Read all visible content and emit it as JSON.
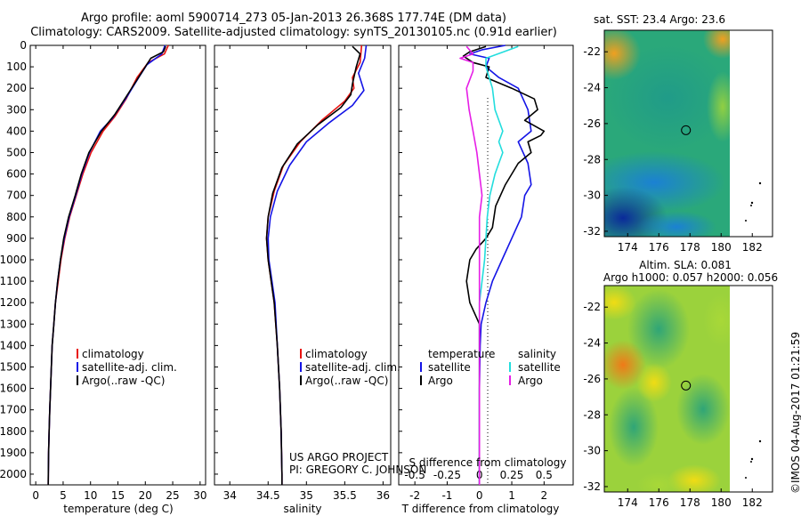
{
  "header": {
    "title_line1": "Argo profile: aoml 5900714_273 05-Jan-2013 26.368S 177.74E (DM data)",
    "title_line2": "Climatology: CARS2009. Satellite-adjusted climatology: synTS_20130105.nc (0.91d earlier)"
  },
  "project": {
    "line1": "US ARGO PROJECT",
    "line2": "PI: GREGORY C. JOHNSON"
  },
  "stamp": "©IMOS 04-Aug-2017 01:21:59",
  "colors": {
    "climatology": "#e8120f",
    "satellite": "#1414e6",
    "argo": "#000000",
    "sal_satellite": "#22dddd",
    "sal_argo": "#e61ee6"
  },
  "chart_data": [
    {
      "type": "line",
      "id": "temperature",
      "xlabel": "temperature (deg C)",
      "ylabel": "",
      "xlim": [
        -1,
        31
      ],
      "ylim": [
        2050,
        0
      ],
      "xticks": [
        0,
        5,
        10,
        15,
        20,
        25,
        30
      ],
      "yticks": [
        0,
        100,
        200,
        300,
        400,
        500,
        600,
        700,
        800,
        900,
        1000,
        1100,
        1200,
        1300,
        1400,
        1500,
        1600,
        1700,
        1800,
        1900,
        2000
      ],
      "legend": [
        "climatology",
        "satellite-adj. clim.",
        "Argo(..raw -QC)"
      ],
      "series": [
        {
          "name": "climatology",
          "color": "#e8120f",
          "points": [
            [
              24.2,
              0
            ],
            [
              23.5,
              40
            ],
            [
              20.5,
              80
            ],
            [
              18.5,
              150
            ],
            [
              16.5,
              250
            ],
            [
              14.5,
              330
            ],
            [
              12.3,
              400
            ],
            [
              10.1,
              500
            ],
            [
              8.6,
              600
            ],
            [
              7.4,
              700
            ],
            [
              6.2,
              800
            ],
            [
              5.3,
              900
            ],
            [
              4.6,
              1000
            ],
            [
              4.1,
              1100
            ],
            [
              3.6,
              1200
            ],
            [
              3.3,
              1300
            ],
            [
              3.0,
              1400
            ],
            [
              2.85,
              1500
            ],
            [
              2.7,
              1600
            ],
            [
              2.55,
              1700
            ],
            [
              2.45,
              1800
            ],
            [
              2.35,
              1900
            ],
            [
              2.3,
              2000
            ],
            [
              2.28,
              2050
            ]
          ]
        },
        {
          "name": "satellite-adj. clim.",
          "color": "#1414e6",
          "points": [
            [
              23.6,
              0
            ],
            [
              23.0,
              40
            ],
            [
              20.3,
              90
            ],
            [
              18.8,
              150
            ],
            [
              16.4,
              250
            ],
            [
              14.0,
              340
            ],
            [
              11.8,
              400
            ],
            [
              9.8,
              500
            ],
            [
              8.4,
              600
            ],
            [
              7.3,
              700
            ],
            [
              6.1,
              800
            ],
            [
              5.2,
              900
            ],
            [
              4.5,
              1000
            ],
            [
              4.0,
              1100
            ],
            [
              3.6,
              1200
            ],
            [
              3.3,
              1300
            ],
            [
              3.0,
              1400
            ],
            [
              2.85,
              1500
            ],
            [
              2.7,
              1600
            ],
            [
              2.55,
              1700
            ],
            [
              2.45,
              1800
            ],
            [
              2.35,
              1900
            ],
            [
              2.3,
              2000
            ],
            [
              2.28,
              2050
            ]
          ]
        },
        {
          "name": "Argo(..raw -QC)",
          "color": "#000000",
          "points": [
            [
              23.7,
              5
            ],
            [
              23.3,
              30
            ],
            [
              21.0,
              60
            ],
            [
              19.5,
              120
            ],
            [
              17.0,
              220
            ],
            [
              14.5,
              320
            ],
            [
              12.0,
              400
            ],
            [
              9.7,
              500
            ],
            [
              8.3,
              600
            ],
            [
              7.2,
              700
            ],
            [
              6.0,
              800
            ],
            [
              5.1,
              900
            ],
            [
              4.5,
              1000
            ],
            [
              4.0,
              1100
            ],
            [
              3.6,
              1200
            ],
            [
              3.3,
              1300
            ],
            [
              3.0,
              1400
            ],
            [
              2.85,
              1500
            ],
            [
              2.7,
              1600
            ],
            [
              2.55,
              1700
            ],
            [
              2.45,
              1800
            ],
            [
              2.35,
              1900
            ],
            [
              2.3,
              2000
            ],
            [
              2.28,
              2050
            ]
          ]
        }
      ]
    },
    {
      "type": "line",
      "id": "salinity",
      "xlabel": "salinity",
      "ylabel": "",
      "xlim": [
        33.8,
        36.1
      ],
      "ylim": [
        2050,
        0
      ],
      "xticks": [
        34,
        34.5,
        35,
        35.5,
        36
      ],
      "legend": [
        "climatology",
        "satellite-adj. clim.",
        "Argo(..raw -QC)"
      ],
      "series": [
        {
          "name": "climatology",
          "color": "#e8120f",
          "points": [
            [
              35.72,
              0
            ],
            [
              35.7,
              80
            ],
            [
              35.6,
              150
            ],
            [
              35.62,
              200
            ],
            [
              35.5,
              260
            ],
            [
              35.2,
              350
            ],
            [
              34.92,
              450
            ],
            [
              34.7,
              560
            ],
            [
              34.58,
              680
            ],
            [
              34.5,
              800
            ],
            [
              34.48,
              900
            ],
            [
              34.5,
              1000
            ],
            [
              34.54,
              1100
            ],
            [
              34.58,
              1200
            ],
            [
              34.62,
              1400
            ],
            [
              34.65,
              1600
            ],
            [
              34.67,
              1800
            ],
            [
              34.68,
              2000
            ],
            [
              34.68,
              2050
            ]
          ]
        },
        {
          "name": "satellite-adj. clim.",
          "color": "#1414e6",
          "points": [
            [
              35.78,
              0
            ],
            [
              35.76,
              60
            ],
            [
              35.68,
              130
            ],
            [
              35.75,
              210
            ],
            [
              35.6,
              280
            ],
            [
              35.3,
              360
            ],
            [
              35.0,
              450
            ],
            [
              34.78,
              560
            ],
            [
              34.62,
              680
            ],
            [
              34.53,
              800
            ],
            [
              34.5,
              900
            ],
            [
              34.51,
              1000
            ],
            [
              34.55,
              1100
            ],
            [
              34.59,
              1200
            ],
            [
              34.62,
              1400
            ],
            [
              34.65,
              1600
            ],
            [
              34.67,
              1800
            ],
            [
              34.68,
              2000
            ],
            [
              34.68,
              2050
            ]
          ]
        },
        {
          "name": "Argo(..raw -QC)",
          "color": "#000000",
          "points": [
            [
              35.6,
              5
            ],
            [
              35.7,
              40
            ],
            [
              35.65,
              100
            ],
            [
              35.6,
              180
            ],
            [
              35.58,
              230
            ],
            [
              35.45,
              290
            ],
            [
              35.15,
              370
            ],
            [
              34.88,
              460
            ],
            [
              34.68,
              570
            ],
            [
              34.56,
              690
            ],
            [
              34.5,
              800
            ],
            [
              34.48,
              900
            ],
            [
              34.5,
              1000
            ],
            [
              34.54,
              1100
            ],
            [
              34.58,
              1200
            ],
            [
              34.62,
              1400
            ],
            [
              34.65,
              1600
            ],
            [
              34.67,
              1800
            ],
            [
              34.68,
              2000
            ],
            [
              34.68,
              2050
            ]
          ]
        }
      ]
    },
    {
      "type": "line",
      "id": "differences",
      "xlabel": "T difference from climatology",
      "x2label": "S difference from climatology",
      "xlim": [
        -2.5,
        2.9
      ],
      "x2lim": [
        -0.625,
        0.725
      ],
      "ylim": [
        2050,
        0
      ],
      "xticks": [
        -2,
        -1,
        0,
        1,
        2
      ],
      "x2ticks": [
        -0.5,
        -0.25,
        0,
        0.25,
        0.5
      ],
      "x2ticklabels": [
        "-0.5",
        "-0.25",
        "0",
        "0.25",
        "0.5"
      ],
      "legend_titles": [
        "temperature",
        "salinity"
      ],
      "legend": [
        "satellite",
        "Argo",
        "satellite",
        "Argo"
      ],
      "series": [
        {
          "name": "temperature satellite",
          "color": "#1414e6",
          "axis": "T",
          "points": [
            [
              0.8,
              0
            ],
            [
              0.1,
              20
            ],
            [
              -0.3,
              40
            ],
            [
              0.3,
              60
            ],
            [
              0.2,
              100
            ],
            [
              0.6,
              150
            ],
            [
              1.2,
              200
            ],
            [
              1.5,
              300
            ],
            [
              1.6,
              400
            ],
            [
              1.2,
              450
            ],
            [
              1.5,
              550
            ],
            [
              1.6,
              650
            ],
            [
              1.4,
              700
            ],
            [
              1.3,
              800
            ],
            [
              1.0,
              900
            ],
            [
              0.7,
              1000
            ],
            [
              0.4,
              1100
            ],
            [
              0.2,
              1200
            ],
            [
              0.05,
              1300
            ],
            [
              0.02,
              1400
            ],
            [
              0.0,
              1600
            ],
            [
              0.0,
              2050
            ]
          ]
        },
        {
          "name": "temperature Argo",
          "color": "#000000",
          "axis": "T",
          "points": [
            [
              0.2,
              5
            ],
            [
              -0.3,
              30
            ],
            [
              -0.5,
              50
            ],
            [
              -0.2,
              80
            ],
            [
              0.3,
              100
            ],
            [
              0.2,
              150
            ],
            [
              1.0,
              200
            ],
            [
              1.7,
              250
            ],
            [
              1.8,
              300
            ],
            [
              1.4,
              350
            ],
            [
              2.0,
              400
            ],
            [
              1.9,
              420
            ],
            [
              1.5,
              450
            ],
            [
              1.6,
              500
            ],
            [
              1.2,
              550
            ],
            [
              0.8,
              650
            ],
            [
              0.5,
              750
            ],
            [
              0.4,
              850
            ],
            [
              0.2,
              900
            ],
            [
              -0.1,
              950
            ],
            [
              -0.3,
              1000
            ],
            [
              -0.4,
              1100
            ],
            [
              -0.3,
              1200
            ],
            [
              0.0,
              1300
            ],
            [
              0.0,
              2050
            ]
          ]
        },
        {
          "name": "salinity satellite",
          "color": "#22dddd",
          "axis": "S",
          "points": [
            [
              0.3,
              5
            ],
            [
              0.05,
              60
            ],
            [
              0.05,
              100
            ],
            [
              0.1,
              200
            ],
            [
              0.12,
              300
            ],
            [
              0.18,
              400
            ],
            [
              0.15,
              450
            ],
            [
              0.18,
              500
            ],
            [
              0.15,
              550
            ],
            [
              0.12,
              600
            ],
            [
              0.08,
              700
            ],
            [
              0.06,
              800
            ],
            [
              0.05,
              900
            ],
            [
              0.04,
              1000
            ],
            [
              0.02,
              1100
            ],
            [
              0.0,
              1200
            ],
            [
              0.0,
              1400
            ],
            [
              0.0,
              2050
            ]
          ]
        },
        {
          "name": "salinity Argo",
          "color": "#e61ee6",
          "axis": "S",
          "points": [
            [
              -0.1,
              5
            ],
            [
              -0.05,
              40
            ],
            [
              -0.15,
              60
            ],
            [
              -0.05,
              80
            ],
            [
              -0.05,
              120
            ],
            [
              -0.1,
              200
            ],
            [
              -0.08,
              300
            ],
            [
              -0.05,
              400
            ],
            [
              -0.02,
              500
            ],
            [
              0.0,
              600
            ],
            [
              0.02,
              700
            ],
            [
              0.0,
              800
            ],
            [
              0.0,
              2050
            ]
          ]
        }
      ]
    },
    {
      "type": "heatmap",
      "id": "sst_map",
      "title": "sat. SST: 23.4  Argo: 23.6",
      "xlim": [
        172.5,
        183.3
      ],
      "ylim": [
        -32.3,
        -20.8
      ],
      "xticks": [
        174,
        176,
        178,
        180,
        182
      ],
      "yticks": [
        -22,
        -24,
        -26,
        -28,
        -30,
        -32
      ],
      "profile_position": {
        "lon": 177.74,
        "lat": -26.368
      }
    },
    {
      "type": "heatmap",
      "id": "sla_map",
      "title": "Altim. SLA: 0.081",
      "subtitle": "Argo h1000: 0.057 h2000: 0.056",
      "xlim": [
        172.5,
        183.3
      ],
      "ylim": [
        -32.3,
        -20.8
      ],
      "xticks": [
        174,
        176,
        178,
        180,
        182
      ],
      "yticks": [
        -22,
        -24,
        -26,
        -28,
        -30,
        -32
      ],
      "profile_position": {
        "lon": 177.74,
        "lat": -26.368
      }
    }
  ]
}
